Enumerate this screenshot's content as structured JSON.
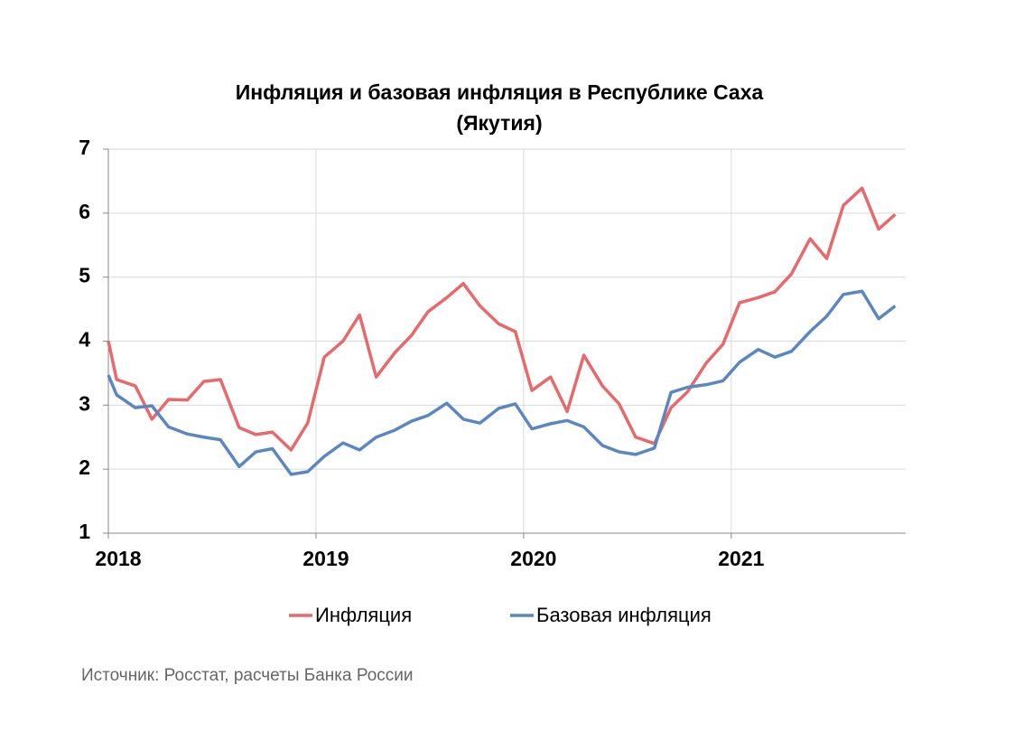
{
  "chart_data": {
    "type": "line",
    "title": [
      "Инфляция и базовая инфляция в Республике Саха",
      "(Якутия)"
    ],
    "source": "Источник: Росстат, расчеты Банка России",
    "x": [
      2018,
      2018.04,
      2018.13,
      2018.21,
      2018.29,
      2018.38,
      2018.46,
      2018.54,
      2018.63,
      2018.71,
      2018.79,
      2018.88,
      2018.96,
      2019.04,
      2019.13,
      2019.21,
      2019.29,
      2019.38,
      2019.46,
      2019.54,
      2019.63,
      2019.71,
      2019.79,
      2019.88,
      2019.96,
      2020.04,
      2020.13,
      2020.21,
      2020.29,
      2020.38,
      2020.46,
      2020.54,
      2020.63,
      2020.71,
      2020.79,
      2020.88,
      2020.96,
      2021.04,
      2021.13,
      2021.21,
      2021.29,
      2021.38,
      2021.46,
      2021.54,
      2021.63,
      2021.71,
      2021.79
    ],
    "series": [
      {
        "name": "Инфляция",
        "color": "#e8696b",
        "values": [
          4.0,
          3.4,
          3.3,
          2.78,
          3.09,
          3.08,
          3.37,
          3.4,
          2.65,
          2.54,
          2.58,
          2.3,
          2.72,
          3.75,
          4.0,
          4.41,
          3.44,
          3.82,
          4.09,
          4.46,
          4.68,
          4.9,
          4.55,
          4.27,
          4.15,
          3.23,
          3.44,
          2.9,
          3.78,
          3.3,
          3.02,
          2.5,
          2.4,
          2.96,
          3.21,
          3.66,
          3.95,
          4.6,
          4.68,
          4.77,
          5.05,
          5.6,
          5.29,
          6.12,
          6.39,
          5.75,
          5.98
        ]
      },
      {
        "name": "Базовая инфляция",
        "color": "#5b87c1",
        "values": [
          3.47,
          3.16,
          2.96,
          2.99,
          2.66,
          2.55,
          2.5,
          2.46,
          2.04,
          2.27,
          2.32,
          1.92,
          1.96,
          2.2,
          2.41,
          2.3,
          2.5,
          2.61,
          2.75,
          2.84,
          3.03,
          2.78,
          2.72,
          2.95,
          3.02,
          2.63,
          2.71,
          2.76,
          2.66,
          2.37,
          2.27,
          2.23,
          2.33,
          3.2,
          3.28,
          3.32,
          3.38,
          3.67,
          3.87,
          3.75,
          3.84,
          4.15,
          4.39,
          4.73,
          4.78,
          4.35,
          4.55
        ]
      }
    ],
    "xlim": [
      2018,
      2021.84
    ],
    "xticks": [
      2018,
      2019,
      2020,
      2021
    ],
    "ylim": [
      1,
      7
    ],
    "yticks": [
      1,
      2,
      3,
      4,
      5,
      6,
      7
    ],
    "grid": true,
    "legend": "bottom"
  }
}
